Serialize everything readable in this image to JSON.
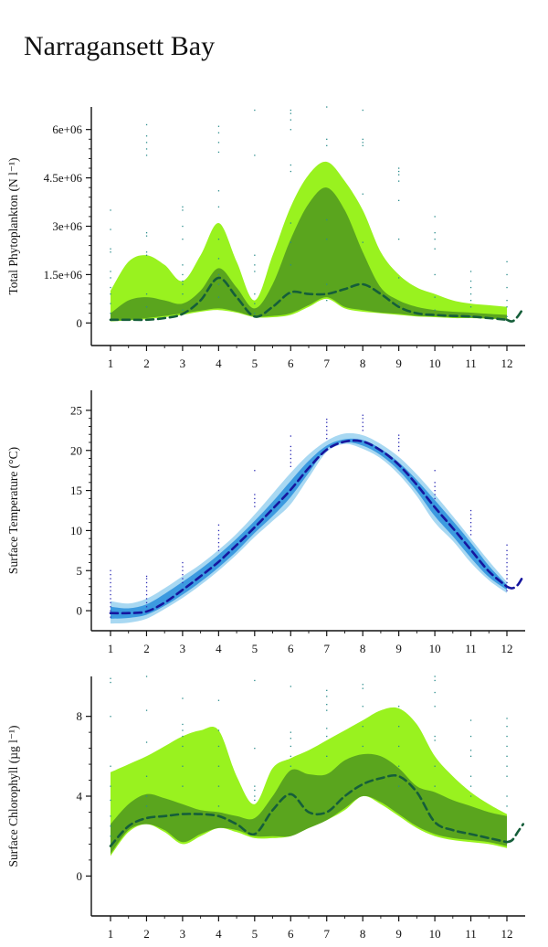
{
  "page": {
    "title": "Narragansett Bay"
  },
  "colors": {
    "outer_band_green": "#99f21f",
    "inner_band_green": "#5aa51e",
    "median_green": "#155e3a",
    "outer_band_blue": "#a8d8f2",
    "inner_band_blue": "#3c9ae0",
    "median_blue": "#16169e",
    "obs_dots": "#2a8c8c",
    "obs_dots_temp": "#2a2ab4"
  },
  "chart_data": [
    {
      "id": "phyto",
      "type": "area",
      "ylabel": "Total Phytoplankton (N l⁻¹)",
      "yticks": [
        0,
        1500000,
        3000000,
        4500000,
        6000000
      ],
      "ytick_labels": [
        "0",
        "1.5e+06",
        "3e+06",
        "4.5e+06",
        "6e+06"
      ],
      "ylim": [
        -700000,
        6700000
      ],
      "xlim": [
        0.6,
        12.5
      ],
      "x_ticks": [
        1,
        2,
        3,
        4,
        5,
        6,
        7,
        8,
        9,
        10,
        11,
        12
      ],
      "x_tick_labels": [
        "1",
        "2",
        "3",
        "4",
        "5",
        "6",
        "7",
        "8",
        "9",
        "10",
        "11",
        "12"
      ],
      "theme": "green",
      "x": [
        1,
        1.5,
        2,
        2.5,
        3,
        3.5,
        4,
        4.5,
        5,
        5.5,
        6,
        6.5,
        7,
        7.5,
        8,
        8.5,
        9,
        9.5,
        10,
        10.5,
        11,
        11.5,
        12
      ],
      "outer_upper": [
        1000000,
        1900000,
        2100000,
        1800000,
        1300000,
        2100000,
        3100000,
        1900000,
        700000,
        2100000,
        3600000,
        4600000,
        5000000,
        4400000,
        3500000,
        2200000,
        1500000,
        1100000,
        900000,
        700000,
        600000,
        550000,
        500000
      ],
      "outer_lower": [
        50000,
        80000,
        120000,
        180000,
        250000,
        350000,
        400000,
        320000,
        180000,
        180000,
        250000,
        500000,
        750000,
        450000,
        350000,
        300000,
        250000,
        200000,
        180000,
        150000,
        150000,
        130000,
        100000
      ],
      "inner_upper": [
        300000,
        700000,
        800000,
        700000,
        600000,
        1000000,
        1700000,
        1100000,
        450000,
        1200000,
        2600000,
        3700000,
        4200000,
        3500000,
        2200000,
        1100000,
        700000,
        500000,
        400000,
        350000,
        320000,
        280000,
        250000
      ],
      "inner_lower": [
        60000,
        90000,
        150000,
        220000,
        300000,
        380000,
        450000,
        350000,
        200000,
        220000,
        300000,
        550000,
        800000,
        500000,
        400000,
        320000,
        280000,
        220000,
        200000,
        170000,
        160000,
        140000,
        120000
      ],
      "median": [
        100000,
        100000,
        100000,
        150000,
        280000,
        700000,
        1400000,
        800000,
        200000,
        500000,
        950000,
        900000,
        900000,
        1050000,
        1200000,
        900000,
        500000,
        300000,
        250000,
        220000,
        200000,
        150000,
        100000
      ],
      "median_tail": {
        "x": [
          12,
          12.15,
          12.3,
          12.45
        ],
        "y": [
          100000,
          50000,
          200000,
          450000
        ]
      },
      "obs": [
        {
          "x": 1,
          "y": [
            300000,
            600000,
            900000,
            1100000,
            1400000,
            1600000,
            2200000,
            2300000,
            2900000,
            3500000
          ]
        },
        {
          "x": 2,
          "y": [
            500000,
            900000,
            2100000,
            2200000,
            2700000,
            2800000,
            5200000,
            5400000,
            5600000,
            5800000,
            6150000
          ]
        },
        {
          "x": 3,
          "y": [
            400000,
            900000,
            1200000,
            1300000,
            1500000,
            1800000,
            2600000,
            3000000,
            3500000,
            3600000
          ]
        },
        {
          "x": 4,
          "y": [
            800000,
            1200000,
            1500000,
            2000000,
            2600000,
            3600000,
            4100000,
            5300000,
            5600000,
            5900000,
            6100000
          ]
        },
        {
          "x": 5,
          "y": [
            300000,
            600000,
            900000,
            1600000,
            1800000,
            2100000,
            5200000,
            6600000
          ]
        },
        {
          "x": 6,
          "y": [
            900000,
            1800000,
            2500000,
            3100000,
            4700000,
            4900000,
            6000000,
            6300000,
            6500000,
            6600000
          ]
        },
        {
          "x": 7,
          "y": [
            700000,
            1200000,
            2600000,
            3200000,
            5500000,
            5700000,
            6700000
          ]
        },
        {
          "x": 8,
          "y": [
            1200000,
            2500000,
            4000000,
            5500000,
            5600000,
            5700000,
            6600000
          ]
        },
        {
          "x": 9,
          "y": [
            600000,
            1400000,
            2600000,
            3800000,
            4400000,
            4600000,
            4700000,
            4800000
          ]
        },
        {
          "x": 10,
          "y": [
            400000,
            800000,
            1500000,
            2300000,
            2600000,
            2800000,
            3300000
          ]
        },
        {
          "x": 11,
          "y": [
            200000,
            500000,
            700000,
            900000,
            1100000,
            1300000,
            1600000
          ]
        },
        {
          "x": 12,
          "y": [
            200000,
            500000,
            700000,
            1100000,
            1500000,
            1900000
          ]
        }
      ]
    },
    {
      "id": "temp",
      "type": "area",
      "ylabel": "Surface Temperature (°C)",
      "yticks": [
        0,
        5,
        10,
        15,
        20,
        25
      ],
      "ytick_labels": [
        "0",
        "5",
        "10",
        "15",
        "20",
        "25"
      ],
      "ylim": [
        -2.5,
        27.5
      ],
      "xlim": [
        0.6,
        12.5
      ],
      "x_ticks": [
        1,
        2,
        3,
        4,
        5,
        6,
        7,
        8,
        9,
        10,
        11,
        12
      ],
      "x_tick_labels": [
        "1",
        "2",
        "3",
        "4",
        "5",
        "6",
        "7",
        "8",
        "9",
        "10",
        "11",
        "12"
      ],
      "theme": "blue",
      "x": [
        1,
        1.5,
        2,
        2.5,
        3,
        3.5,
        4,
        4.5,
        5,
        5.5,
        6,
        6.5,
        7,
        7.5,
        8,
        8.5,
        9,
        9.5,
        10,
        10.5,
        11,
        11.5,
        12
      ],
      "outer_upper": [
        1.2,
        0.9,
        1.5,
        2.8,
        4.3,
        5.8,
        7.6,
        9.6,
        12.0,
        14.6,
        17.2,
        19.5,
        21.2,
        22.1,
        21.9,
        20.8,
        19.2,
        17.0,
        14.5,
        11.8,
        9.0,
        6.2,
        3.6
      ],
      "outer_lower": [
        -1.6,
        -1.5,
        -1.0,
        0.2,
        1.6,
        3.2,
        5.0,
        7.0,
        9.2,
        11.2,
        13.3,
        16.6,
        19.8,
        20.8,
        20.2,
        19.0,
        17.0,
        14.3,
        11.0,
        8.7,
        6.0,
        3.8,
        2.2
      ],
      "inner_upper": [
        0.5,
        0.3,
        0.8,
        2.1,
        3.6,
        5.2,
        7.0,
        9.0,
        11.2,
        13.6,
        16.2,
        18.7,
        20.6,
        21.4,
        21.3,
        20.2,
        18.5,
        16.3,
        13.8,
        11.2,
        8.5,
        5.6,
        3.2
      ],
      "inner_lower": [
        -1.0,
        -0.9,
        -0.5,
        0.6,
        2.0,
        3.6,
        5.4,
        7.4,
        9.7,
        11.8,
        14.2,
        17.2,
        20.2,
        21.0,
        20.6,
        19.4,
        17.5,
        14.9,
        11.8,
        9.3,
        6.6,
        4.2,
        2.6
      ],
      "median": [
        -0.3,
        -0.3,
        -0.1,
        1.0,
        2.6,
        4.3,
        6.1,
        8.2,
        10.4,
        12.7,
        15.1,
        17.8,
        20.1,
        21.1,
        21.1,
        20.0,
        18.2,
        15.7,
        12.9,
        10.3,
        7.6,
        4.9,
        3.0
      ],
      "median_tail": {
        "x": [
          12,
          12.15,
          12.3,
          12.45
        ],
        "y": [
          3.0,
          2.8,
          3.2,
          4.3
        ]
      },
      "obs": [
        {
          "x": 1,
          "y": [
            -0.8,
            -0.3,
            0.0,
            0.5,
            1.0,
            1.5,
            2.0,
            2.5,
            3.0,
            3.5,
            4.0,
            4.5,
            5.0
          ]
        },
        {
          "x": 2,
          "y": [
            0.5,
            1.0,
            1.5,
            2.0,
            2.5,
            3.0,
            3.5,
            4.0,
            4.3
          ]
        },
        {
          "x": 3,
          "y": [
            3.5,
            4.0,
            4.5,
            5.0,
            5.5,
            6.0
          ]
        },
        {
          "x": 4,
          "y": [
            7.5,
            8.0,
            8.5,
            9.0,
            9.5,
            10.0,
            10.7
          ]
        },
        {
          "x": 5,
          "y": [
            13.0,
            13.5,
            14.0,
            14.5,
            17.5
          ]
        },
        {
          "x": 6,
          "y": [
            18.0,
            18.5,
            19.0,
            19.5,
            20.0,
            20.5,
            21.8
          ]
        },
        {
          "x": 7,
          "y": [
            21.5,
            22.0,
            22.5,
            23.0,
            23.5,
            23.9
          ]
        },
        {
          "x": 8,
          "y": [
            22.5,
            23.0,
            23.5,
            24.0,
            24.4
          ]
        },
        {
          "x": 9,
          "y": [
            20.0,
            20.5,
            21.0,
            21.5,
            21.9
          ]
        },
        {
          "x": 10,
          "y": [
            14.0,
            14.5,
            15.0,
            15.5,
            16.0,
            17.5
          ]
        },
        {
          "x": 11,
          "y": [
            9.5,
            10.0,
            10.5,
            11.0,
            11.5,
            12.0,
            12.5
          ]
        },
        {
          "x": 12,
          "y": [
            2.5,
            3.0,
            3.5,
            4.0,
            4.5,
            5.0,
            5.5,
            6.0,
            6.5,
            7.0,
            7.5,
            8.2
          ]
        }
      ]
    },
    {
      "id": "chl",
      "type": "area",
      "ylabel": "Surface Chlorophyll (µg l⁻¹)",
      "yticks": [
        0,
        4,
        8
      ],
      "ytick_labels": [
        "0",
        "4",
        "8"
      ],
      "ylim": [
        -2.0,
        10.0
      ],
      "xlim": [
        0.6,
        12.5
      ],
      "x_ticks": [
        1,
        2,
        3,
        4,
        5,
        6,
        7,
        8,
        9,
        10,
        11,
        12
      ],
      "x_tick_labels": [
        "1",
        "2",
        "3",
        "4",
        "5",
        "6",
        "7",
        "8",
        "9",
        "10",
        "11",
        "12"
      ],
      "theme": "green",
      "x": [
        1,
        1.5,
        2,
        2.5,
        3,
        3.5,
        4,
        4.5,
        5,
        5.5,
        6,
        6.5,
        7,
        7.5,
        8,
        8.5,
        9,
        9.5,
        10,
        10.5,
        11,
        11.5,
        12
      ],
      "outer_upper": [
        5.2,
        5.6,
        6.0,
        6.5,
        7.0,
        7.3,
        7.3,
        5.0,
        3.6,
        5.4,
        5.9,
        6.3,
        6.8,
        7.3,
        7.8,
        8.3,
        8.4,
        7.6,
        6.0,
        5.0,
        4.2,
        3.6,
        3.1
      ],
      "outer_lower": [
        1.0,
        2.2,
        2.6,
        2.2,
        1.6,
        2.0,
        2.4,
        2.2,
        1.9,
        1.9,
        2.0,
        2.4,
        2.8,
        3.3,
        4.0,
        3.6,
        3.0,
        2.4,
        2.0,
        1.8,
        1.7,
        1.6,
        1.4
      ],
      "inner_upper": [
        2.6,
        3.6,
        4.1,
        3.9,
        3.6,
        3.3,
        3.2,
        3.0,
        2.9,
        4.0,
        5.3,
        5.1,
        5.1,
        5.8,
        6.1,
        6.0,
        5.4,
        4.5,
        4.2,
        3.8,
        3.5,
        3.2,
        3.0
      ],
      "inner_lower": [
        1.1,
        2.3,
        2.6,
        2.3,
        1.7,
        2.1,
        2.4,
        2.3,
        2.0,
        2.0,
        2.0,
        2.4,
        2.8,
        3.4,
        4.0,
        3.7,
        3.1,
        2.5,
        2.1,
        1.9,
        1.8,
        1.7,
        1.5
      ],
      "median": [
        1.5,
        2.5,
        2.9,
        3.0,
        3.1,
        3.1,
        3.0,
        2.6,
        2.1,
        3.3,
        4.1,
        3.2,
        3.2,
        4.0,
        4.6,
        4.9,
        5.0,
        4.2,
        2.7,
        2.3,
        2.1,
        1.9,
        1.7
      ],
      "median_tail": {
        "x": [
          12,
          12.15,
          12.3,
          12.45
        ],
        "y": [
          1.7,
          1.8,
          2.2,
          2.6
        ]
      },
      "obs": [
        {
          "x": 1,
          "y": [
            2.0,
            2.5,
            3.0,
            3.8,
            4.5,
            5.5,
            8.0,
            9.7,
            9.9
          ]
        },
        {
          "x": 2,
          "y": [
            3.5,
            4.0,
            5.0,
            6.7,
            8.3,
            10.0
          ]
        },
        {
          "x": 3,
          "y": [
            4.5,
            5.5,
            6.5,
            7.0,
            7.3,
            7.6,
            8.9
          ]
        },
        {
          "x": 4,
          "y": [
            3.5,
            4.5,
            5.5,
            6.5,
            7.3,
            8.8
          ]
        },
        {
          "x": 5,
          "y": [
            3.8,
            4.0,
            4.3,
            4.5,
            6.4,
            9.8
          ]
        },
        {
          "x": 6,
          "y": [
            5.5,
            6.0,
            6.5,
            6.9,
            7.2,
            9.5
          ]
        },
        {
          "x": 7,
          "y": [
            6.0,
            7.0,
            7.4,
            8.3,
            8.6,
            9.0,
            9.3
          ]
        },
        {
          "x": 8,
          "y": [
            6.5,
            7.5,
            8.5,
            9.4,
            9.6
          ]
        },
        {
          "x": 9,
          "y": [
            4.5,
            5.5,
            6.5,
            7.5,
            8.5
          ]
        },
        {
          "x": 10,
          "y": [
            4.5,
            5.5,
            6.8,
            7.0,
            8.5,
            9.2,
            9.8,
            10.0
          ]
        },
        {
          "x": 11,
          "y": [
            4.0,
            4.5,
            5.0,
            6.0,
            6.3,
            7.0,
            7.8
          ]
        },
        {
          "x": 12,
          "y": [
            3.5,
            4.0,
            5.0,
            5.5,
            6.0,
            6.5,
            7.0,
            7.5,
            7.9
          ]
        }
      ]
    }
  ]
}
